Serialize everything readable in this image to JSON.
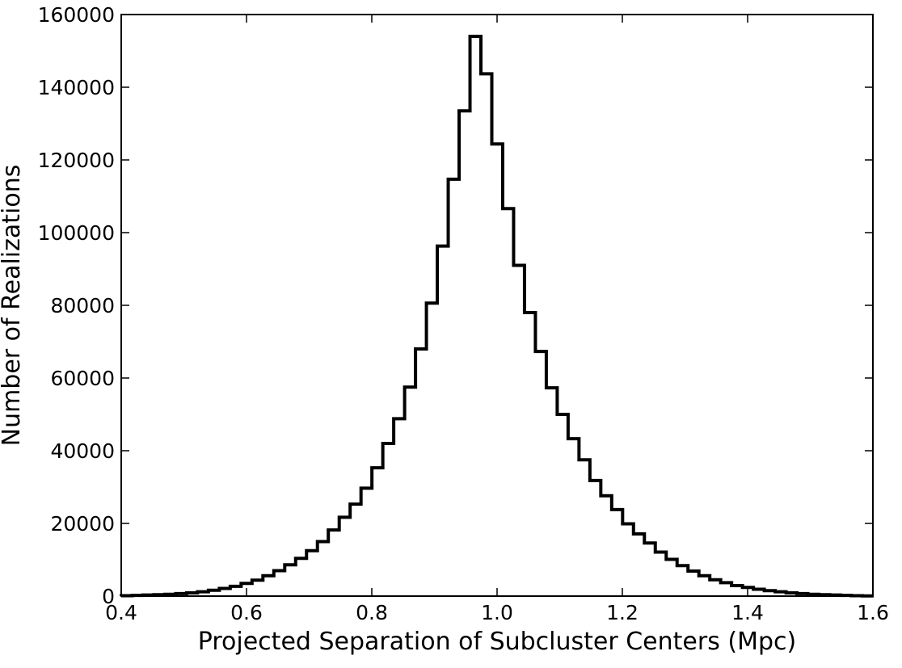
{
  "chart_data": {
    "type": "bar",
    "subtype": "step-histogram",
    "title": "",
    "xlabel": "Projected Separation of Subcluster Centers (Mpc)",
    "ylabel": "Number of Realizations",
    "xlim": [
      0.4,
      1.6
    ],
    "ylim": [
      0,
      160000
    ],
    "xticks": [
      0.4,
      0.6,
      0.8,
      1.0,
      1.2,
      1.4,
      1.6
    ],
    "xtick_labels": [
      "0.4",
      "0.6",
      "0.8",
      "1.0",
      "1.2",
      "1.4",
      "1.6"
    ],
    "yticks": [
      0,
      20000,
      40000,
      60000,
      80000,
      100000,
      120000,
      140000,
      160000
    ],
    "ytick_labels": [
      "0",
      "20000",
      "40000",
      "60000",
      "80000",
      "100000",
      "120000",
      "140000",
      "160000"
    ],
    "grid": false,
    "legend": "none",
    "line_color": "#000000",
    "bin_width": 0.0174,
    "bin_start": 0.4,
    "counts": [
      100,
      200,
      300,
      400,
      500,
      700,
      900,
      1200,
      1600,
      2100,
      2700,
      3500,
      4400,
      5600,
      7000,
      8600,
      10400,
      12500,
      15000,
      18200,
      21700,
      25300,
      29700,
      35300,
      42000,
      48800,
      57500,
      68000,
      80600,
      96300,
      114700,
      133500,
      154000,
      143700,
      124400,
      106600,
      91000,
      78000,
      67300,
      57300,
      50000,
      43300,
      37500,
      31800,
      27600,
      23800,
      19900,
      17100,
      14600,
      12100,
      10100,
      8400,
      6900,
      5600,
      4500,
      3700,
      2900,
      2400,
      1900,
      1500,
      1200,
      900,
      700,
      500,
      400,
      300,
      200,
      100,
      50
    ]
  }
}
